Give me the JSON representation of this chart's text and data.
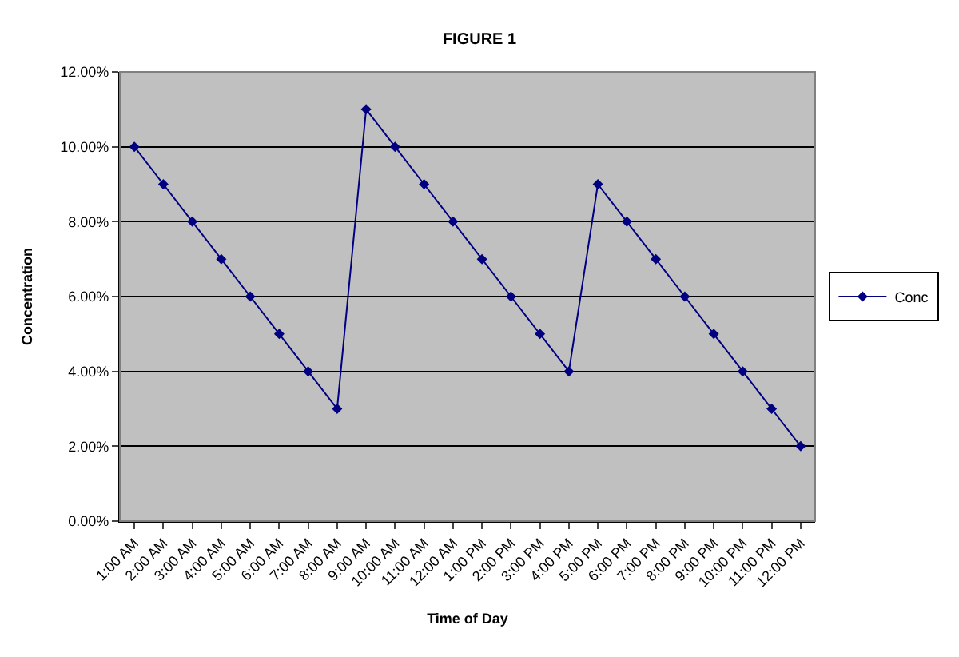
{
  "chart_data": {
    "type": "line",
    "title": "FIGURE 1",
    "xlabel": "Time of Day",
    "ylabel": "Concentration",
    "categories": [
      "1:00 AM",
      "2:00 AM",
      "3:00 AM",
      "4:00 AM",
      "5:00 AM",
      "6:00 AM",
      "7:00 AM",
      "8:00 AM",
      "9:00 AM",
      "10:00 AM",
      "11:00 AM",
      "12:00 AM",
      "1:00 PM",
      "2:00 PM",
      "3:00 PM",
      "4:00 PM",
      "5:00 PM",
      "6:00 PM",
      "7:00 PM",
      "8:00 PM",
      "9:00 PM",
      "10:00 PM",
      "11:00 PM",
      "12:00 PM"
    ],
    "series": [
      {
        "name": "Conc",
        "color": "#000080",
        "values": [
          10,
          9,
          8,
          7,
          6,
          5,
          4,
          3,
          11,
          10,
          9,
          8,
          7,
          6,
          5,
          4,
          9,
          8,
          7,
          6,
          5,
          4,
          3,
          2
        ]
      }
    ],
    "ylim": [
      0,
      12
    ],
    "yticks": [
      {
        "value": 0,
        "label": "0.00%"
      },
      {
        "value": 2,
        "label": "2.00%"
      },
      {
        "value": 4,
        "label": "4.00%"
      },
      {
        "value": 6,
        "label": "6.00%"
      },
      {
        "value": 8,
        "label": "8.00%"
      },
      {
        "value": 10,
        "label": "10.00%"
      },
      {
        "value": 12,
        "label": "12.00%"
      }
    ],
    "grid": "y",
    "legend": "right",
    "marker": "diamond",
    "line_style": "solid"
  }
}
